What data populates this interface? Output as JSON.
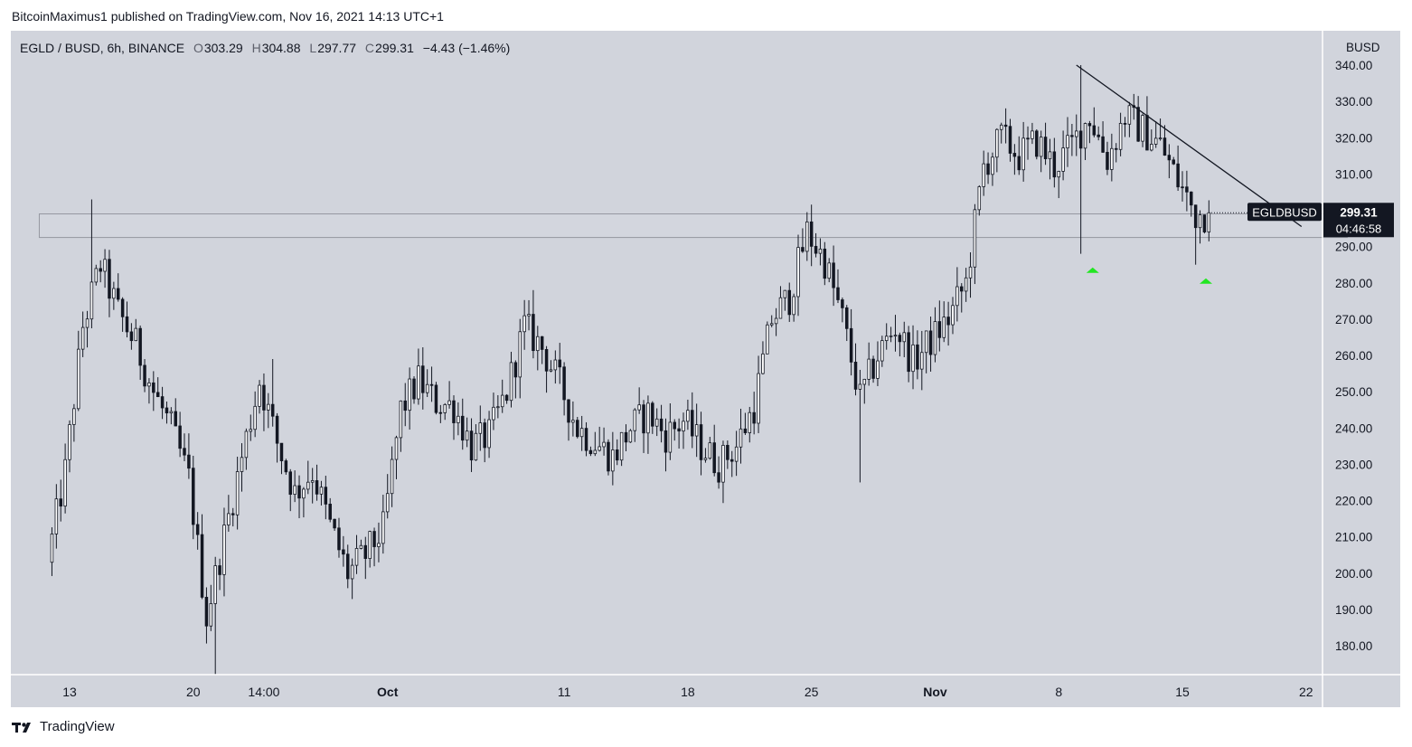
{
  "byline": "BitcoinMaximus1 published on TradingView.com, Nov 16, 2021 14:13 UTC+1",
  "footer": {
    "brand": "TradingView",
    "logo_icon": "tradingview-logo-icon"
  },
  "legend": {
    "symbol": "EGLD / BUSD, 6h, BINANCE",
    "o_label": "O",
    "o": "303.29",
    "h_label": "H",
    "h": "304.88",
    "l_label": "L",
    "l": "297.77",
    "c_label": "C",
    "c": "299.31",
    "change": "−4.43 (−1.46%)"
  },
  "colors": {
    "background": "#d1d4dc",
    "candle_body": "#131722",
    "resistance_box": "#9598a1",
    "support_arrow": "#22e622",
    "last_price_label": "#131722"
  },
  "chart_data": {
    "type": "candlestick",
    "symbol": "EGLDBUSD",
    "timeframe": "6h",
    "exchange": "BINANCE",
    "currency_label": "BUSD",
    "ylim": [
      172,
      348
    ],
    "y_ticks": [
      "180.00",
      "190.00",
      "200.00",
      "210.00",
      "220.00",
      "230.00",
      "240.00",
      "250.00",
      "260.00",
      "270.00",
      "280.00",
      "290.00",
      "300.00",
      "310.00",
      "320.00",
      "330.00",
      "340.00"
    ],
    "x_ticks": [
      {
        "label": "13",
        "date": "2021-09-13"
      },
      {
        "label": "20",
        "date": "2021-09-20"
      },
      {
        "label": "14:00",
        "date": "2021-09-24"
      },
      {
        "label": "Oct",
        "date": "2021-10-01"
      },
      {
        "label": "11",
        "date": "2021-10-11"
      },
      {
        "label": "18",
        "date": "2021-10-18"
      },
      {
        "label": "25",
        "date": "2021-10-25"
      },
      {
        "label": "Nov",
        "date": "2021-11-01"
      },
      {
        "label": "8",
        "date": "2021-11-08"
      },
      {
        "label": "15",
        "date": "2021-11-15"
      },
      {
        "label": "22",
        "date": "2021-11-22"
      }
    ],
    "last_price": {
      "symbol_label": "EGLDBUSD",
      "price": "299.31",
      "countdown": "04:46:58"
    },
    "resistance_zone": {
      "low": 292.5,
      "high": 299,
      "from": "2021-09-12",
      "to": "2021-11-23"
    },
    "descending_trendline": {
      "from": {
        "date": "2021-11-09",
        "price": 340
      },
      "to": {
        "date": "2021-11-22",
        "price": 302
      }
    },
    "support_arrows": [
      {
        "date": "2021-11-09",
        "price": 283
      },
      {
        "date": "2021-11-15",
        "price": 280
      }
    ],
    "anchors": [
      {
        "date": "2021-09-12",
        "price": 203
      },
      {
        "date": "2021-09-13",
        "price": 228
      },
      {
        "date": "2021-09-14",
        "price": 268
      },
      {
        "date": "2021-09-15",
        "price": 285
      },
      {
        "date": "2021-09-16",
        "price": 272
      },
      {
        "date": "2021-09-17",
        "price": 263
      },
      {
        "date": "2021-09-18",
        "price": 250
      },
      {
        "date": "2021-09-19",
        "price": 240
      },
      {
        "date": "2021-09-20",
        "price": 226
      },
      {
        "date": "2021-09-21",
        "price": 188
      },
      {
        "date": "2021-09-22",
        "price": 210
      },
      {
        "date": "2021-09-23",
        "price": 232
      },
      {
        "date": "2021-09-24",
        "price": 253
      },
      {
        "date": "2021-09-25",
        "price": 236
      },
      {
        "date": "2021-09-26",
        "price": 222
      },
      {
        "date": "2021-09-27",
        "price": 228
      },
      {
        "date": "2021-09-28",
        "price": 213
      },
      {
        "date": "2021-09-29",
        "price": 200
      },
      {
        "date": "2021-09-30",
        "price": 205
      },
      {
        "date": "2021-10-01",
        "price": 212
      },
      {
        "date": "2021-10-02",
        "price": 245
      },
      {
        "date": "2021-10-03",
        "price": 253
      },
      {
        "date": "2021-10-04",
        "price": 247
      },
      {
        "date": "2021-10-05",
        "price": 246
      },
      {
        "date": "2021-10-06",
        "price": 235
      },
      {
        "date": "2021-10-07",
        "price": 238
      },
      {
        "date": "2021-10-08",
        "price": 250
      },
      {
        "date": "2021-10-09",
        "price": 268
      },
      {
        "date": "2021-10-10",
        "price": 262
      },
      {
        "date": "2021-10-11",
        "price": 252
      },
      {
        "date": "2021-10-12",
        "price": 240
      },
      {
        "date": "2021-10-13",
        "price": 236
      },
      {
        "date": "2021-10-14",
        "price": 232
      },
      {
        "date": "2021-10-15",
        "price": 240
      },
      {
        "date": "2021-10-16",
        "price": 244
      },
      {
        "date": "2021-10-17",
        "price": 238
      },
      {
        "date": "2021-10-18",
        "price": 242
      },
      {
        "date": "2021-10-19",
        "price": 235
      },
      {
        "date": "2021-10-20",
        "price": 230
      },
      {
        "date": "2021-10-21",
        "price": 235
      },
      {
        "date": "2021-10-22",
        "price": 246
      },
      {
        "date": "2021-10-23",
        "price": 270
      },
      {
        "date": "2021-10-24",
        "price": 276
      },
      {
        "date": "2021-10-25",
        "price": 294
      },
      {
        "date": "2021-10-26",
        "price": 286
      },
      {
        "date": "2021-10-27",
        "price": 270
      },
      {
        "date": "2021-10-28",
        "price": 248
      },
      {
        "date": "2021-10-29",
        "price": 260
      },
      {
        "date": "2021-10-30",
        "price": 268
      },
      {
        "date": "2021-10-31",
        "price": 258
      },
      {
        "date": "2021-11-01",
        "price": 264
      },
      {
        "date": "2021-11-02",
        "price": 270
      },
      {
        "date": "2021-11-03",
        "price": 280
      },
      {
        "date": "2021-11-04",
        "price": 312
      },
      {
        "date": "2021-11-05",
        "price": 320
      },
      {
        "date": "2021-11-06",
        "price": 315
      },
      {
        "date": "2021-11-07",
        "price": 319
      },
      {
        "date": "2021-11-08",
        "price": 312
      },
      {
        "date": "2021-11-09",
        "price": 318
      },
      {
        "date": "2021-11-10",
        "price": 326
      },
      {
        "date": "2021-11-11",
        "price": 314
      },
      {
        "date": "2021-11-12",
        "price": 326
      },
      {
        "date": "2021-11-13",
        "price": 322
      },
      {
        "date": "2021-11-14",
        "price": 318
      },
      {
        "date": "2021-11-15",
        "price": 308
      },
      {
        "date": "2021-11-16",
        "price": 299
      }
    ]
  }
}
